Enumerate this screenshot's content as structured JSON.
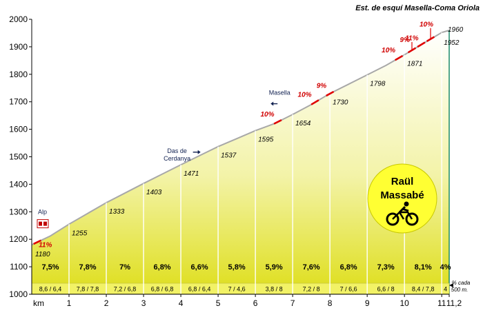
{
  "chart_data": {
    "type": "area",
    "title": "Est. de esquí Masella-Coma Oriola",
    "xlabel": "km",
    "ylabel": "",
    "xlim": [
      0,
      11.2
    ],
    "ylim": [
      1000,
      2000
    ],
    "y_ticks": [
      "1000",
      "1100",
      "1200",
      "1300",
      "1400",
      "1500",
      "1600",
      "1700",
      "1800",
      "1900",
      "2000"
    ],
    "x_ticks": [
      {
        "km": 0,
        "label": "km"
      },
      {
        "km": 1,
        "label": "1"
      },
      {
        "km": 2,
        "label": "2"
      },
      {
        "km": 3,
        "label": "3"
      },
      {
        "km": 4,
        "label": "4"
      },
      {
        "km": 5,
        "label": "5"
      },
      {
        "km": 6,
        "label": "6"
      },
      {
        "km": 7,
        "label": "7"
      },
      {
        "km": 8,
        "label": "8"
      },
      {
        "km": 9,
        "label": "9"
      },
      {
        "km": 10,
        "label": "10"
      },
      {
        "km": 11,
        "label": "11"
      },
      {
        "km": 11.2,
        "label": "11,2"
      }
    ],
    "profile": [
      {
        "x": 0,
        "y": 1180
      },
      {
        "x": 0.5,
        "y": 1212
      },
      {
        "x": 1,
        "y": 1255
      },
      {
        "x": 1.5,
        "y": 1294
      },
      {
        "x": 2,
        "y": 1333
      },
      {
        "x": 2.5,
        "y": 1368
      },
      {
        "x": 3,
        "y": 1403
      },
      {
        "x": 3.5,
        "y": 1437
      },
      {
        "x": 4,
        "y": 1471
      },
      {
        "x": 4.5,
        "y": 1504
      },
      {
        "x": 5,
        "y": 1537
      },
      {
        "x": 5.5,
        "y": 1566
      },
      {
        "x": 6,
        "y": 1595
      },
      {
        "x": 6.5,
        "y": 1620
      },
      {
        "x": 7,
        "y": 1654
      },
      {
        "x": 7.5,
        "y": 1690
      },
      {
        "x": 8,
        "y": 1730
      },
      {
        "x": 8.5,
        "y": 1764
      },
      {
        "x": 9,
        "y": 1798
      },
      {
        "x": 9.5,
        "y": 1832
      },
      {
        "x": 10,
        "y": 1871
      },
      {
        "x": 10.5,
        "y": 1912
      },
      {
        "x": 11,
        "y": 1952
      },
      {
        "x": 11.2,
        "y": 1960
      }
    ],
    "altitude_labels": [
      {
        "x": 0,
        "y": 1180,
        "text": "1180"
      },
      {
        "x": 1,
        "y": 1255,
        "text": "1255"
      },
      {
        "x": 2,
        "y": 1333,
        "text": "1333"
      },
      {
        "x": 3,
        "y": 1403,
        "text": "1403"
      },
      {
        "x": 4,
        "y": 1471,
        "text": "1471"
      },
      {
        "x": 5,
        "y": 1537,
        "text": "1537"
      },
      {
        "x": 6,
        "y": 1595,
        "text": "1595"
      },
      {
        "x": 7,
        "y": 1654,
        "text": "1654"
      },
      {
        "x": 8,
        "y": 1730,
        "text": "1730"
      },
      {
        "x": 9,
        "y": 1798,
        "text": "1798"
      },
      {
        "x": 10,
        "y": 1871,
        "text": "1871"
      },
      {
        "x": 11,
        "y": 1952,
        "text": "1952"
      },
      {
        "x": 11.2,
        "y": 1960,
        "text": "1960"
      }
    ],
    "segments": [
      {
        "from": 0,
        "to": 1,
        "gradient": "7,5%",
        "sub": "8,6 / 6,4"
      },
      {
        "from": 1,
        "to": 2,
        "gradient": "7,8%",
        "sub": "7,8 / 7,8"
      },
      {
        "from": 2,
        "to": 3,
        "gradient": "7%",
        "sub": "7,2 / 6,8"
      },
      {
        "from": 3,
        "to": 4,
        "gradient": "6,8%",
        "sub": "6,8 / 6,8"
      },
      {
        "from": 4,
        "to": 5,
        "gradient": "6,6%",
        "sub": "6,8 / 6,4"
      },
      {
        "from": 5,
        "to": 6,
        "gradient": "5,8%",
        "sub": "7 / 4,6"
      },
      {
        "from": 6,
        "to": 7,
        "gradient": "5,9%",
        "sub": "3,8 / 8"
      },
      {
        "from": 7,
        "to": 8,
        "gradient": "7,6%",
        "sub": "7,2 / 8"
      },
      {
        "from": 8,
        "to": 9,
        "gradient": "6,8%",
        "sub": "7 / 6,6"
      },
      {
        "from": 9,
        "to": 10,
        "gradient": "7,3%",
        "sub": "6,6 / 8"
      },
      {
        "from": 10,
        "to": 11,
        "gradient": "8,1%",
        "sub": "8,4 / 7,8"
      },
      {
        "from": 11,
        "to": 11.2,
        "gradient": "4%",
        "sub": "4"
      }
    ],
    "steep_sections": [
      {
        "x": 0.15,
        "text": "11%"
      },
      {
        "x": 6.6,
        "text": "10%"
      },
      {
        "x": 7.6,
        "text": "10%"
      },
      {
        "x": 8.0,
        "text": "9%"
      },
      {
        "x": 9.85,
        "text": "10%"
      },
      {
        "x": 10.2,
        "text": "9%"
      },
      {
        "x": 10.45,
        "text": "11%"
      },
      {
        "x": 10.7,
        "text": "10%"
      }
    ],
    "places": [
      {
        "x": 0.1,
        "lines": [
          "Alp"
        ]
      },
      {
        "x": 3.9,
        "lines": [
          "Das de",
          "Cerdanya"
        ]
      },
      {
        "x": 6.65,
        "lines": [
          "Masella"
        ]
      }
    ],
    "note": [
      "% cada",
      "500 m."
    ],
    "badge": [
      "Raül",
      "Massabé"
    ],
    "colors": {
      "fill_top": "#ffffff",
      "fill_bottom": "#dede1a",
      "band": "#f2f266",
      "profile_line": "#a8a8a8",
      "steep": "#e00000",
      "badge": "#ffff33",
      "finish_line": "#1a8a6a"
    }
  }
}
